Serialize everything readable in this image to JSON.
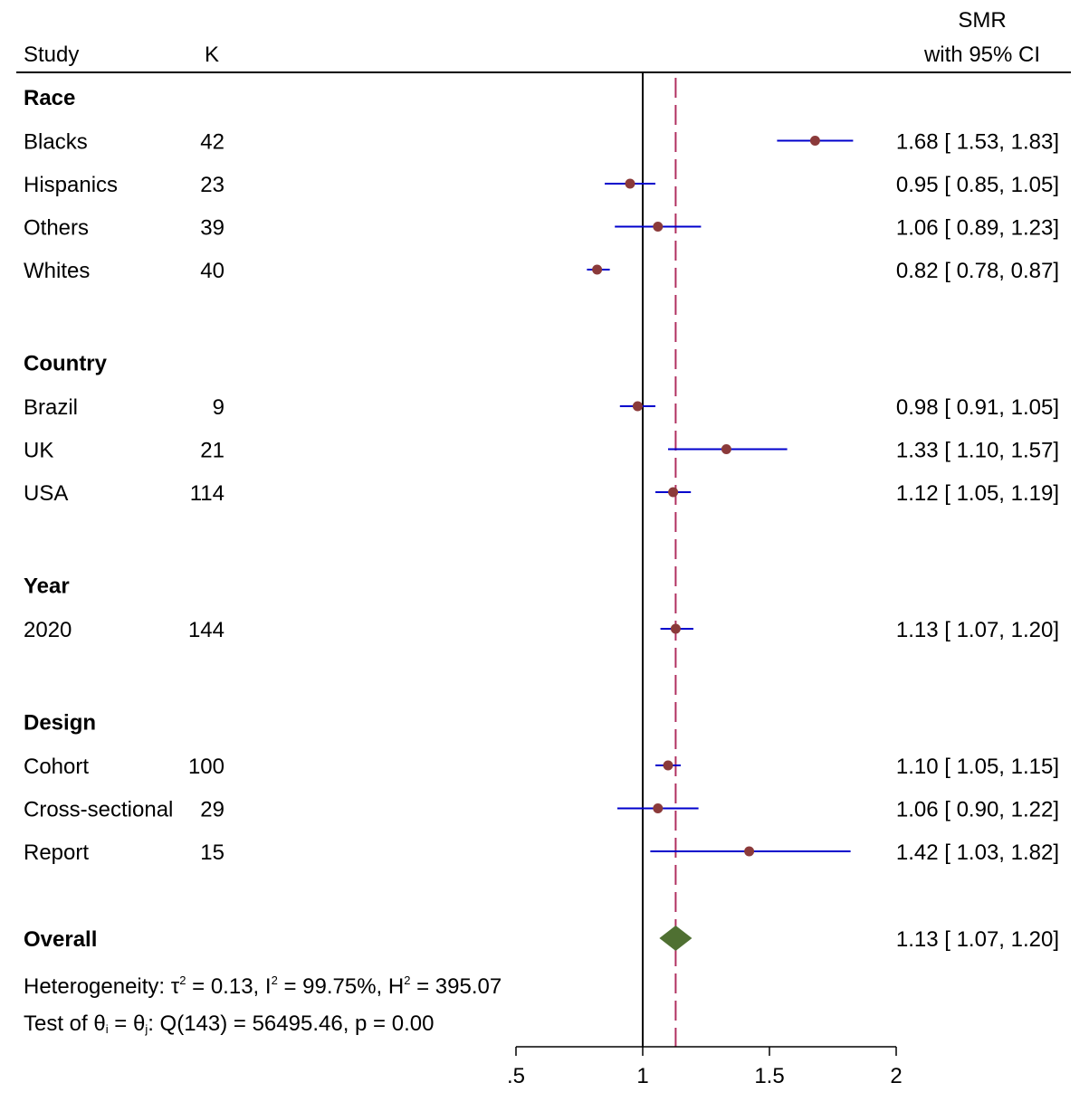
{
  "chart_data": {
    "type": "forest",
    "title": "",
    "headers": {
      "study": "Study",
      "k": "K",
      "smr_line1": "SMR",
      "smr_line2": "with 95% CI"
    },
    "axis": {
      "xlim": [
        0.5,
        2.0
      ],
      "ticks": [
        0.5,
        1,
        1.5,
        2
      ],
      "tick_labels": [
        ".5",
        "1",
        "1.5",
        "2"
      ],
      "null_line": 1,
      "overall_line": 1.13
    },
    "groups": [
      {
        "name": "Race",
        "rows": [
          {
            "label": "Blacks",
            "k": "42",
            "est": 1.68,
            "lo": 1.53,
            "hi": 1.83,
            "ci_text": "1.68 [ 1.53,  1.83]"
          },
          {
            "label": "Hispanics",
            "k": "23",
            "est": 0.95,
            "lo": 0.85,
            "hi": 1.05,
            "ci_text": "0.95 [ 0.85,  1.05]"
          },
          {
            "label": "Others",
            "k": "39",
            "est": 1.06,
            "lo": 0.89,
            "hi": 1.23,
            "ci_text": "1.06 [ 0.89,  1.23]"
          },
          {
            "label": "Whites",
            "k": "40",
            "est": 0.82,
            "lo": 0.78,
            "hi": 0.87,
            "ci_text": "0.82 [ 0.78,  0.87]"
          }
        ]
      },
      {
        "name": "Country",
        "rows": [
          {
            "label": "Brazil",
            "k": "9",
            "est": 0.98,
            "lo": 0.91,
            "hi": 1.05,
            "ci_text": "0.98 [ 0.91,  1.05]"
          },
          {
            "label": "UK",
            "k": "21",
            "est": 1.33,
            "lo": 1.1,
            "hi": 1.57,
            "ci_text": "1.33 [ 1.10,  1.57]"
          },
          {
            "label": "USA",
            "k": "114",
            "est": 1.12,
            "lo": 1.05,
            "hi": 1.19,
            "ci_text": "1.12 [ 1.05,  1.19]"
          }
        ]
      },
      {
        "name": "Year",
        "rows": [
          {
            "label": "2020",
            "k": "144",
            "est": 1.13,
            "lo": 1.07,
            "hi": 1.2,
            "ci_text": "1.13 [ 1.07,  1.20]"
          }
        ]
      },
      {
        "name": "Design",
        "rows": [
          {
            "label": "Cohort",
            "k": "100",
            "est": 1.1,
            "lo": 1.05,
            "hi": 1.15,
            "ci_text": "1.10 [ 1.05,  1.15]"
          },
          {
            "label": "Cross-sectional",
            "k": "29",
            "est": 1.06,
            "lo": 0.9,
            "hi": 1.22,
            "ci_text": "1.06 [ 0.90,  1.22]"
          },
          {
            "label": "Report",
            "k": "15",
            "est": 1.42,
            "lo": 1.03,
            "hi": 1.82,
            "ci_text": "1.42 [ 1.03,  1.82]"
          }
        ]
      }
    ],
    "overall": {
      "label": "Overall",
      "est": 1.13,
      "lo": 1.07,
      "hi": 1.2,
      "ci_text": "1.13 [ 1.07,  1.20]"
    },
    "heterogeneity": {
      "prefix": "Heterogeneity: τ",
      "tau_sup": "2",
      "tau_val": " = 0.13, I",
      "i_sup": "2",
      "i_val": " = 99.75%, H",
      "h_sup": "2",
      "h_val": " = 395.07"
    },
    "homogeneity_test": {
      "prefix": "Test of θ",
      "sub_i": "i",
      "mid": " = θ",
      "sub_j": "j",
      "suffix": ": Q(143) = 56495.46, p = 0.00"
    },
    "colors": {
      "ci_line": "#0000cc",
      "point": "#8b3a3a",
      "null_line": "#000000",
      "overall_line": "#b03060",
      "diamond": "#4f7032",
      "header_rule": "#000000"
    }
  }
}
